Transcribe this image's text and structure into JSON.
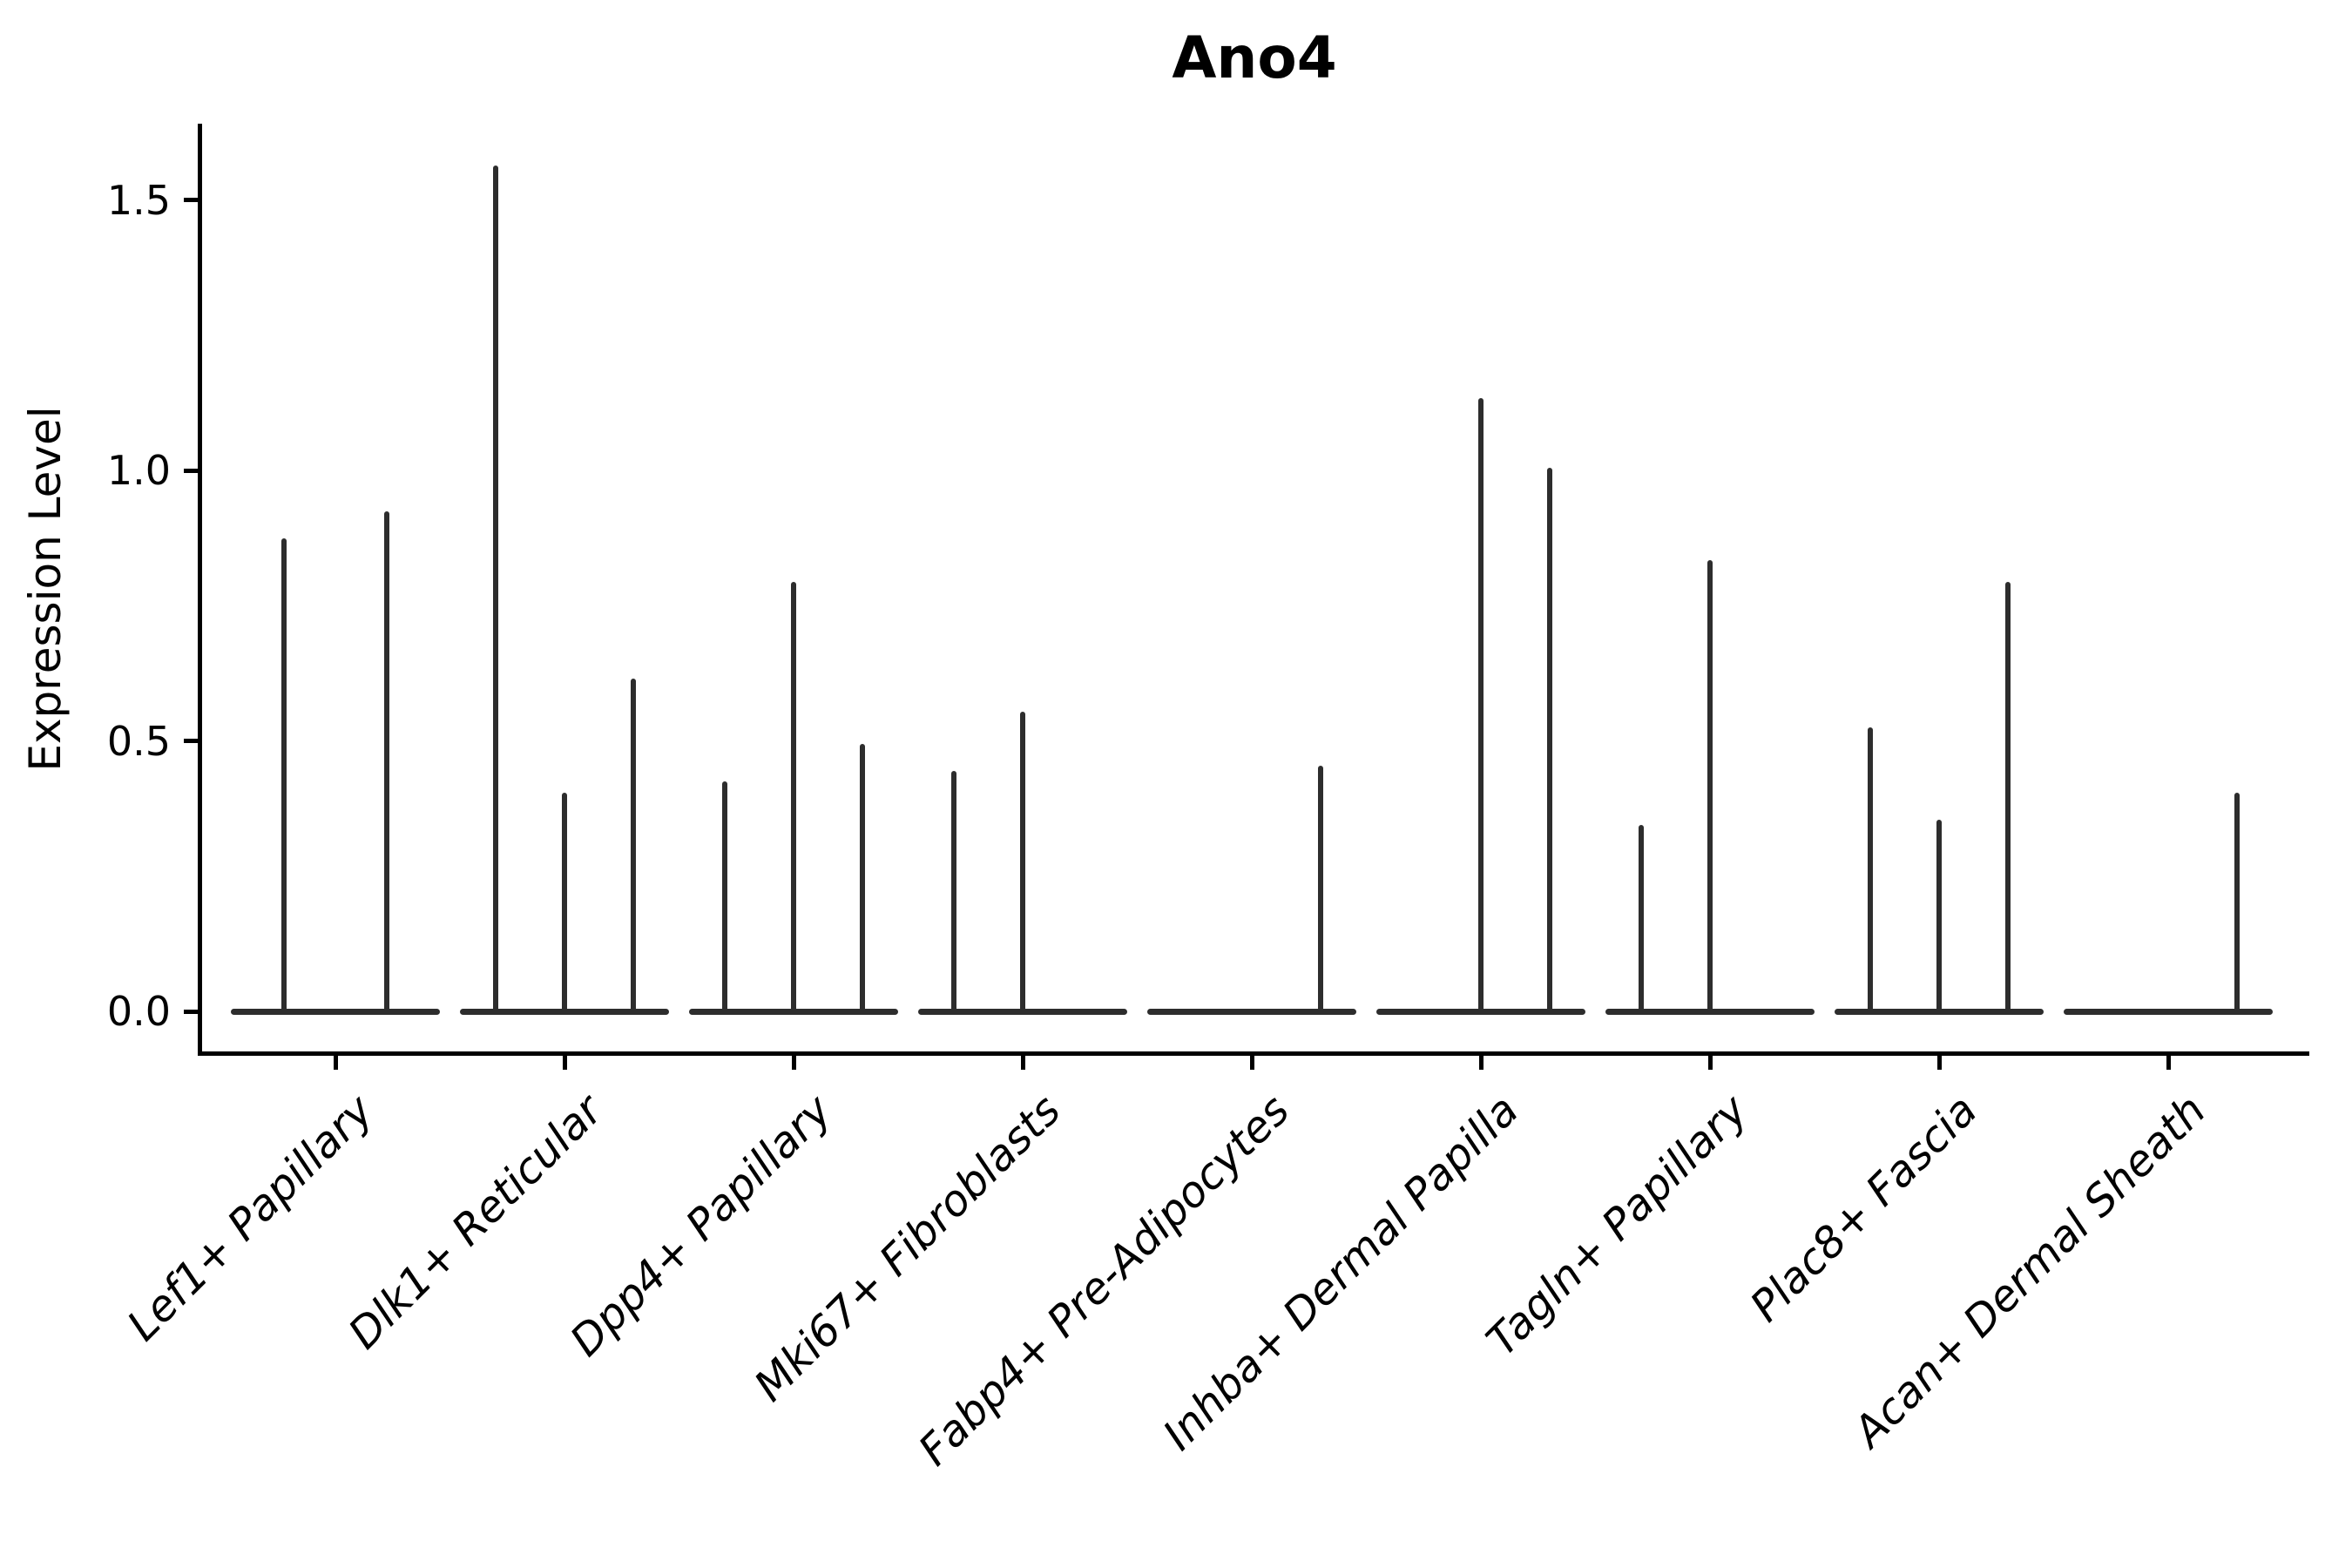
{
  "chart_data": {
    "type": "violin",
    "title": "Ano4",
    "xlabel": "",
    "ylabel": "Expression Level",
    "grid": false,
    "legend": "none",
    "line_color": "#2d2d2d",
    "axis_color": "#000000",
    "background_color": "#ffffff",
    "ytick_labels": [
      "0.0",
      "0.5",
      "1.0",
      "1.5"
    ],
    "ytick_values": [
      0.0,
      0.5,
      1.0,
      1.5
    ],
    "ylim": [
      -0.08,
      1.64
    ],
    "categories": [
      "Lef1+ Papillary",
      "Dlk1+ Reticular",
      "Dpp4+ Papillary",
      "Mki67+ Fibroblasts",
      "Fabp4+ Pre-Adipocytes",
      "Inhba+ Dermal Papilla",
      "Tagln+ Papillary",
      "Plac8+ Fascia",
      "Acan+ Dermal Sheath"
    ],
    "baseline_halfwidth": 0.46,
    "groups": [
      {
        "category": "Lef1+ Papillary",
        "violins": [
          {
            "offset": -0.225,
            "peak": 0.87
          },
          {
            "offset": 0.225,
            "peak": 0.92
          }
        ]
      },
      {
        "category": "Dlk1+ Reticular",
        "violins": [
          {
            "offset": -0.3,
            "peak": 1.56
          },
          {
            "offset": 0.0,
            "peak": 0.4
          },
          {
            "offset": 0.3,
            "peak": 0.61
          }
        ]
      },
      {
        "category": "Dpp4+ Papillary",
        "violins": [
          {
            "offset": -0.3,
            "peak": 0.42
          },
          {
            "offset": 0.0,
            "peak": 0.79
          },
          {
            "offset": 0.3,
            "peak": 0.49
          }
        ]
      },
      {
        "category": "Mki67+ Fibroblasts",
        "violins": [
          {
            "offset": -0.3,
            "peak": 0.44
          },
          {
            "offset": 0.0,
            "peak": 0.55
          }
        ]
      },
      {
        "category": "Fabp4+ Pre-Adipocytes",
        "violins": [
          {
            "offset": 0.3,
            "peak": 0.45
          }
        ]
      },
      {
        "category": "Inhba+ Dermal Papilla",
        "violins": [
          {
            "offset": 0.0,
            "peak": 1.13
          },
          {
            "offset": 0.3,
            "peak": 1.0
          }
        ]
      },
      {
        "category": "Tagln+ Papillary",
        "violins": [
          {
            "offset": -0.3,
            "peak": 0.34
          },
          {
            "offset": 0.0,
            "peak": 0.83
          }
        ]
      },
      {
        "category": "Plac8+ Fascia",
        "violins": [
          {
            "offset": -0.3,
            "peak": 0.52
          },
          {
            "offset": 0.0,
            "peak": 0.35
          },
          {
            "offset": 0.3,
            "peak": 0.79
          }
        ]
      },
      {
        "category": "Acan+ Dermal Sheath",
        "violins": [
          {
            "offset": 0.3,
            "peak": 0.4
          }
        ]
      }
    ]
  }
}
